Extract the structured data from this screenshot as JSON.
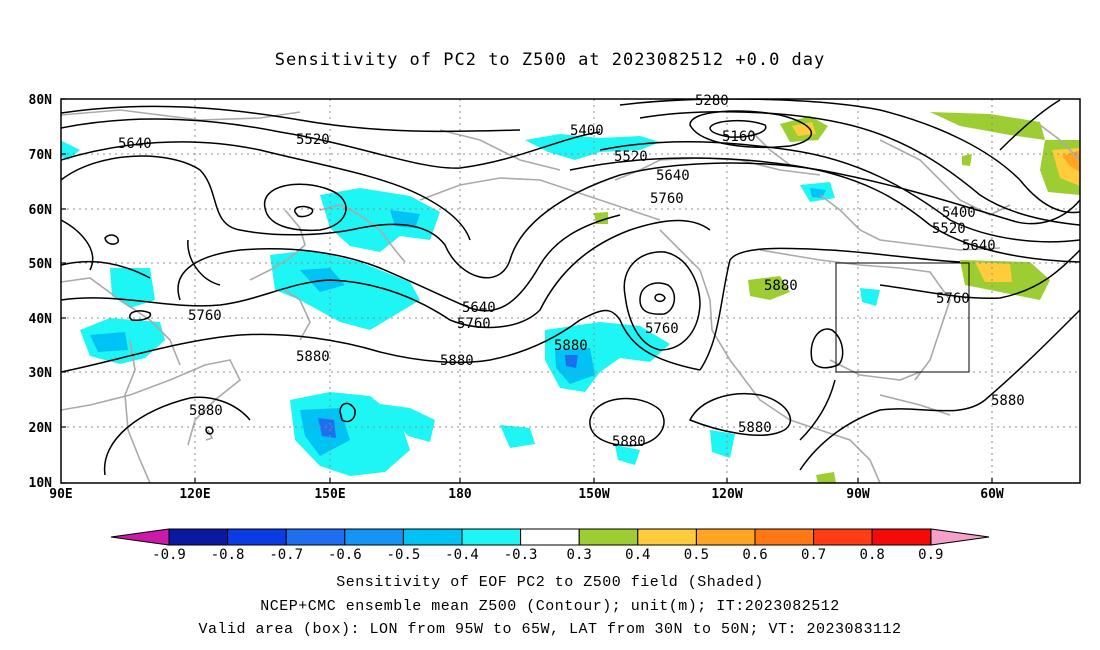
{
  "title": "Sensitivity of PC2 to Z500 at 2023082512 +0.0 day",
  "lat_labels": [
    "80N",
    "70N",
    "60N",
    "50N",
    "40N",
    "30N",
    "20N",
    "10N"
  ],
  "lon_labels": [
    "90E",
    "120E",
    "150E",
    "180",
    "150W",
    "120W",
    "90W",
    "60W"
  ],
  "contour_labels": {
    "c5280": "5280",
    "c5160": "5160",
    "c5400a": "5400",
    "c5520a": "5520",
    "c5640a": "5640",
    "c5520b": "5520",
    "c5640b": "5640",
    "c5760a": "5760",
    "c5400b": "5400",
    "c5520c": "5520",
    "c5640c": "5640",
    "c5760b": "5760",
    "c5640d": "5640",
    "c5760c": "5760",
    "c5880a": "5880",
    "c5760d": "5760",
    "c5880b": "5880",
    "c5880c": "5880",
    "c5880d": "5880",
    "c5880e": "5880",
    "c5880f": "5880",
    "c5880g": "5880",
    "c5880h": "5880",
    "c5760e": "5760"
  },
  "colorbar": {
    "labels": [
      "-0.9",
      "-0.8",
      "-0.7",
      "-0.6",
      "-0.5",
      "-0.4",
      "-0.3",
      "0.3",
      "0.4",
      "0.5",
      "0.6",
      "0.7",
      "0.8",
      "0.9"
    ],
    "colors": [
      "#0a1aa0",
      "#0a3ce6",
      "#1e6ef0",
      "#1494f5",
      "#00c3f5",
      "#1ef5f5",
      "#ffffff",
      "#9ccd32",
      "#ffcd3c",
      "#ffa522",
      "#ff7814",
      "#ff3c14",
      "#f50a0a"
    ],
    "low_arrow_color": "#cc1aa8",
    "high_arrow_color": "#f5a0c8"
  },
  "captions": {
    "line1": "Sensitivity of EOF PC2 to Z500 field (Shaded)",
    "line2": "NCEP+CMC ensemble mean Z500 (Contour); unit(m); IT:2023082512",
    "line3": "Valid area (box): LON from 95W to 65W, LAT from 30N to 50N; VT: 2023083112"
  }
}
